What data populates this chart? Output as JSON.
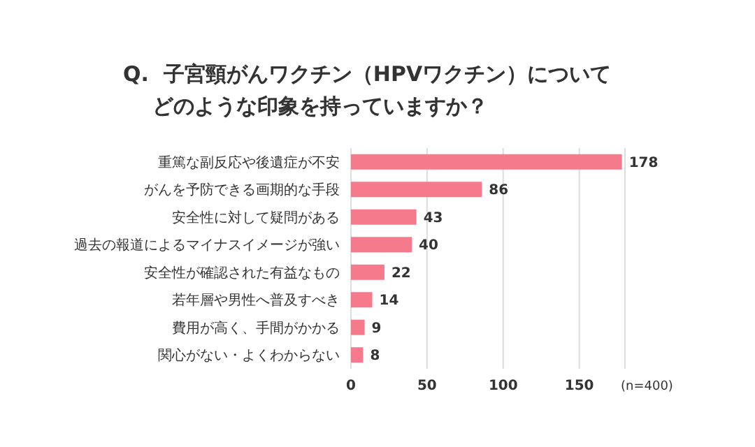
{
  "chart_data": {
    "type": "bar",
    "orientation": "horizontal",
    "title": "Q.  子宮頸がんワクチン（HPVワクチン）についてどのような印象を持っていますか？",
    "categories": [
      "重篤な副反応や後遺症が不安",
      "がんを予防できる画期的な手段",
      "安全性に対して疑問がある",
      "過去の報道によるマイナスイメージが強い",
      "安全性が確認された有益なもの",
      "若年層や男性へ普及すべき",
      "費用が高く、手間がかかる",
      "関心がない・よくわからない"
    ],
    "values": [
      178,
      86,
      43,
      40,
      22,
      14,
      9,
      8
    ],
    "color": "#f47a8c",
    "xlim": [
      0,
      180
    ],
    "xticks": [
      0,
      50,
      100,
      150
    ],
    "grid": "x",
    "data_labels": true,
    "annotations": [
      "(n=400)"
    ]
  }
}
